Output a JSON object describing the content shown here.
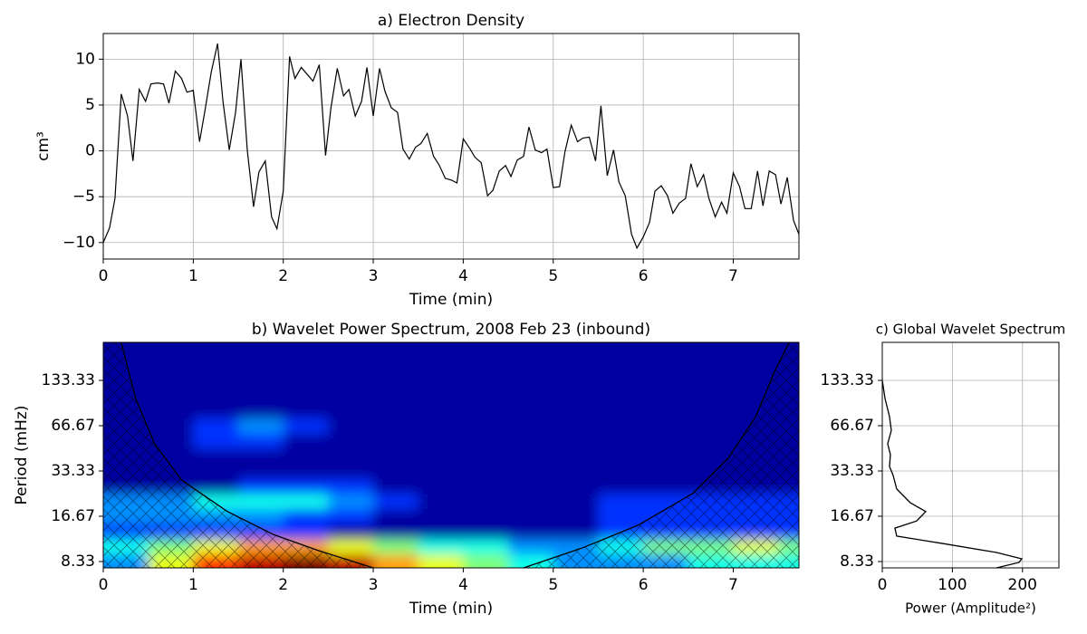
{
  "chart_data": [
    {
      "type": "line",
      "title": "a) Electron Density",
      "xlabel": "Time (min)",
      "ylabel": "cm³",
      "color": "#000000",
      "x": [
        0,
        0.07,
        0.13,
        0.2,
        0.27,
        0.33,
        0.4,
        0.47,
        0.53,
        0.6,
        0.67,
        0.73,
        0.8,
        0.87,
        0.93,
        1,
        1.07,
        1.13,
        1.2,
        1.27,
        1.33,
        1.4,
        1.47,
        1.53,
        1.6,
        1.67,
        1.73,
        1.8,
        1.87,
        1.93,
        2,
        2.07,
        2.13,
        2.2,
        2.27,
        2.33,
        2.4,
        2.47,
        2.53,
        2.6,
        2.67,
        2.73,
        2.8,
        2.87,
        2.93,
        3,
        3.07,
        3.13,
        3.2,
        3.27,
        3.33,
        3.4,
        3.47,
        3.53,
        3.6,
        3.67,
        3.73,
        3.8,
        3.87,
        3.93,
        4,
        4.07,
        4.13,
        4.2,
        4.27,
        4.33,
        4.4,
        4.47,
        4.53,
        4.6,
        4.67,
        4.73,
        4.8,
        4.87,
        4.93,
        5,
        5.07,
        5.13,
        5.2,
        5.27,
        5.33,
        5.4,
        5.47,
        5.53,
        5.6,
        5.67,
        5.73,
        5.8,
        5.87,
        5.93,
        6,
        6.07,
        6.13,
        6.2,
        6.27,
        6.33,
        6.4,
        6.47,
        6.53,
        6.6,
        6.67,
        6.73,
        6.8,
        6.87,
        6.93,
        7,
        7.07,
        7.13,
        7.2,
        7.27,
        7.33,
        7.4,
        7.47,
        7.53,
        7.6,
        7.67,
        7.73
      ],
      "values": [
        -10,
        -8.4,
        -5.2,
        6.2,
        3.8,
        -1.1,
        6.7,
        5.4,
        7.3,
        7.4,
        7.3,
        5.2,
        8.7,
        7.9,
        6.4,
        6.6,
        1.0,
        4.4,
        8.6,
        11.7,
        5.4,
        0.1,
        4.2,
        10.0,
        0.1,
        -6.1,
        -2.3,
        -1.1,
        -7.2,
        -8.5,
        -4.4,
        10.3,
        7.9,
        9.1,
        8.3,
        7.6,
        9.4,
        -0.5,
        4.7,
        9.0,
        6.0,
        6.7,
        3.8,
        5.4,
        9.1,
        3.8,
        9.0,
        6.5,
        4.7,
        4.2,
        0.2,
        -0.9,
        0.4,
        0.8,
        1.9,
        -0.6,
        -1.5,
        -3.0,
        -3.2,
        -3.5,
        1.3,
        0.3,
        -0.7,
        -1.3,
        -4.9,
        -4.3,
        -2.2,
        -1.6,
        -2.8,
        -1.0,
        -0.6,
        2.6,
        0.1,
        -0.2,
        0.2,
        -4.0,
        -3.9,
        -0.1,
        2.8,
        1.0,
        1.4,
        1.5,
        -1.1,
        4.9,
        -2.7,
        0.1,
        -3.4,
        -4.9,
        -9.1,
        -10.6,
        -9.4,
        -7.8,
        -4.4,
        -3.8,
        -4.9,
        -6.8,
        -5.7,
        -5.2,
        -1.4,
        -3.9,
        -2.6,
        -5.2,
        -7.2,
        -5.6,
        -6.8,
        -2.4,
        -3.9,
        -6.3,
        -6.3,
        -2.2,
        -6.0,
        -2.2,
        -2.6,
        -5.8,
        -2.9,
        -7.6,
        -9.1
      ],
      "xlim": [
        0,
        7.73
      ],
      "ylim": [
        -11.8,
        12.8
      ],
      "xticks": [
        0,
        1,
        2,
        3,
        4,
        5,
        6,
        7
      ],
      "yticks": [
        {
          "value": -10,
          "label": "−10"
        },
        {
          "value": -5,
          "label": "−5"
        },
        0,
        5,
        10
      ],
      "grid": true
    },
    {
      "type": "contour",
      "title": "b) Wavelet Power Spectrum, 2008 Feb 23 (inbound)",
      "xlabel": "Time (min)",
      "ylabel": "Period (mHz)",
      "x": [
        0.25,
        0.75,
        1.25,
        1.75,
        2.25,
        2.75,
        3.25,
        3.75,
        4.25,
        4.75,
        5.25,
        5.75,
        6.25,
        6.75,
        7.25,
        7.75
      ],
      "y": [
        8.33,
        10.5,
        13.22,
        16.67,
        21,
        26.5,
        33.33,
        42,
        52.9,
        66.67,
        84,
        105.8,
        133.33,
        168,
        211.7
      ],
      "z": [
        [
          2,
          5,
          7,
          8,
          9,
          8,
          6,
          5,
          4,
          3,
          2,
          2,
          2,
          3,
          3,
          3
        ],
        [
          3,
          4,
          5,
          6,
          6,
          5,
          4,
          3,
          3,
          2,
          2,
          3,
          4,
          4,
          5,
          4
        ],
        [
          1,
          1,
          1,
          1,
          1,
          0,
          0,
          0,
          0,
          0,
          0,
          1,
          1,
          1,
          1,
          1
        ],
        [
          2,
          2,
          2,
          2,
          1,
          1,
          0,
          0,
          0,
          0,
          0,
          1,
          1,
          1,
          1,
          1
        ],
        [
          2,
          2,
          3,
          3,
          3,
          2,
          1,
          0,
          0,
          0,
          0,
          1,
          1,
          1,
          1,
          1
        ],
        [
          0,
          0,
          0,
          1,
          1,
          1,
          0,
          0,
          0,
          0,
          0,
          0,
          0,
          0,
          0,
          0
        ],
        [
          0,
          0,
          0,
          0,
          0,
          0,
          0,
          0,
          0,
          0,
          0,
          0,
          0,
          0,
          0,
          0
        ],
        [
          0,
          0,
          0,
          0,
          0,
          0,
          0,
          0,
          0,
          0,
          0,
          0,
          0,
          0,
          0,
          0
        ],
        [
          0,
          0,
          1,
          1,
          0,
          0,
          0,
          0,
          0,
          0,
          0,
          0,
          0,
          0,
          0,
          0
        ],
        [
          0,
          0,
          1,
          2,
          1,
          0,
          0,
          0,
          0,
          0,
          0,
          0,
          0,
          0,
          0,
          0
        ],
        [
          0,
          0,
          0,
          0,
          0,
          0,
          0,
          0,
          0,
          0,
          0,
          0,
          0,
          0,
          0,
          0
        ],
        [
          0,
          0,
          0,
          0,
          0,
          0,
          0,
          0,
          0,
          0,
          0,
          0,
          0,
          0,
          0,
          0
        ],
        [
          0,
          0,
          0,
          0,
          0,
          0,
          0,
          0,
          0,
          0,
          0,
          0,
          0,
          0,
          0,
          0
        ],
        [
          0,
          0,
          0,
          0,
          0,
          0,
          0,
          0,
          0,
          0,
          0,
          0,
          0,
          0,
          0,
          0
        ],
        [
          0,
          0,
          0,
          0,
          0,
          0,
          0,
          0,
          0,
          0,
          0,
          0,
          0,
          0,
          0,
          0
        ]
      ],
      "colors": [
        "#0000a0",
        "#0030ff",
        "#0090ff",
        "#10ffe8",
        "#7dff7a",
        "#e8ff10",
        "#ffa000",
        "#ff3000",
        "#c00000",
        "#7f0000"
      ],
      "coi": {
        "x": [
          0.2,
          0.36,
          0.57,
          0.87,
          1.38,
          1.89,
          2.39,
          3.0,
          null,
          4.67,
          5.33,
          5.94,
          6.55,
          6.95,
          7.25,
          7.46,
          7.62
        ],
        "y": [
          238.7,
          101,
          50.5,
          29,
          17.9,
          12.6,
          9.86,
          7.56,
          null,
          7.56,
          10.3,
          14.5,
          23.6,
          41,
          76.6,
          153,
          238.7
        ]
      },
      "xlim": [
        0,
        7.73
      ],
      "ylim": [
        7.56,
        238.7
      ],
      "ylog": true,
      "xticks": [
        0,
        1,
        2,
        3,
        4,
        5,
        6,
        7
      ],
      "yticks": [
        8.33,
        16.67,
        33.33,
        66.67,
        133.33
      ],
      "grid": false
    },
    {
      "type": "profile",
      "title": "c) Global Wavelet Spectrum",
      "xlabel": "Power (Amplitude²)",
      "color": "#000000",
      "values": [
        0,
        3.9,
        10.3,
        12.9,
        7.7,
        11.6,
        10.3,
        15.5,
        20.6,
        40,
        62,
        49,
        18,
        20.6,
        85,
        163,
        199,
        195,
        163
      ],
      "periods": [
        133.33,
        101,
        76.6,
        62.1,
        50.5,
        42.8,
        35.7,
        31.1,
        25.3,
        20.5,
        17.9,
        15.5,
        13.9,
        12.3,
        11.0,
        9.57,
        8.68,
        8.22,
        7.56
      ],
      "xlim": [
        0,
        252
      ],
      "ylim": [
        7.56,
        238.7
      ],
      "ylog": true,
      "xticks": [
        0,
        100,
        200
      ],
      "yticks": [
        8.33,
        16.67,
        33.33,
        66.67,
        133.33
      ],
      "grid": true
    }
  ]
}
